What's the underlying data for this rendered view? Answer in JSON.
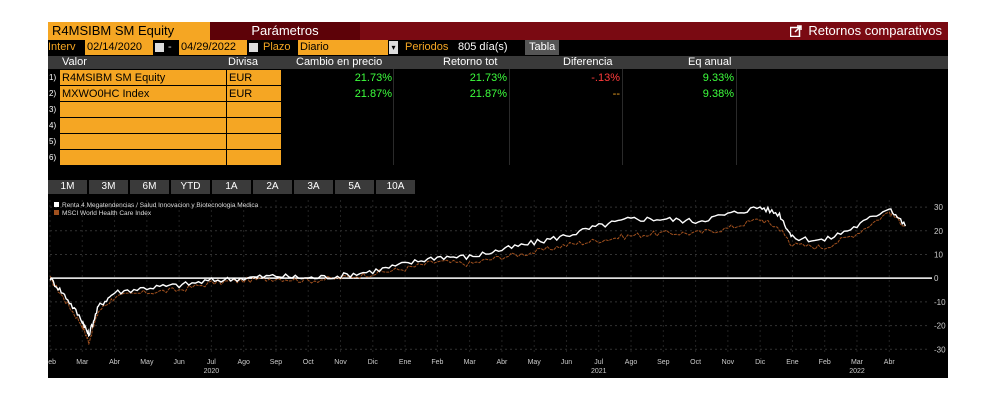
{
  "title": {
    "ticker": "R4MSIBM SM Equity",
    "params_tab": "Parámetros",
    "compare_label": "Retornos comparativos",
    "compare_icon": "external-link-icon"
  },
  "params": {
    "interval_label": "Interv",
    "start_date": "02/14/2020",
    "end_date": "04/29/2022",
    "plazo_label": "Plazo",
    "plazo_value": "Diario",
    "periodos_label": "Periodos",
    "periodos_value": "805 día(s)",
    "tabla_button": "Tabla"
  },
  "table": {
    "headers": [
      "Valor",
      "Divisa",
      "Cambio en precio",
      "Retorno tot",
      "Diferencia",
      "Eq anual"
    ],
    "rows": [
      {
        "num": "1)",
        "name": "R4MSIBM SM Equity",
        "currency": "EUR",
        "price_change": "21.73%",
        "total_return": "21.73%",
        "difference": "-.13%",
        "annual_eq": "9.33%"
      },
      {
        "num": "2)",
        "name": "MXWO0HC Index",
        "currency": "EUR",
        "price_change": "21.87%",
        "total_return": "21.87%",
        "difference": "--",
        "annual_eq": "9.38%"
      },
      {
        "num": "3)",
        "name": "",
        "currency": ""
      },
      {
        "num": "4)",
        "name": "",
        "currency": ""
      },
      {
        "num": "5)",
        "name": "",
        "currency": ""
      },
      {
        "num": "6)",
        "name": "",
        "currency": ""
      }
    ]
  },
  "periods": [
    "1M",
    "3M",
    "6M",
    "YTD",
    "1A",
    "2A",
    "3A",
    "5A",
    "10A"
  ],
  "colors": {
    "orange": "#f5a623",
    "title_red": "#7a0a12",
    "positive": "#3dff3d",
    "negative": "#ff3b3b"
  },
  "chart_data": {
    "type": "line",
    "legend": [
      {
        "name": "Renta 4 Megatendencias / Salud Innovacion y Biotecnologia Medica",
        "color": "#ffffff"
      },
      {
        "name": "MSCI World Health Care Index",
        "color": "#a0501e"
      }
    ],
    "x_tick_labels": [
      "Feb",
      "Mar",
      "Abr",
      "May",
      "Jun",
      "Jul",
      "Ago",
      "Sep",
      "Oct",
      "Nov",
      "Dic",
      "Ene",
      "Feb",
      "Mar",
      "Abr",
      "May",
      "Jun",
      "Jul",
      "Ago",
      "Sep",
      "Oct",
      "Nov",
      "Dic",
      "Ene",
      "Feb",
      "Mar",
      "Abr"
    ],
    "year_labels": [
      {
        "label": "2020",
        "month_index": 5
      },
      {
        "label": "2021",
        "month_index": 17
      },
      {
        "label": "2022",
        "month_index": 25
      }
    ],
    "y_ticks": [
      30,
      20,
      10,
      0,
      -10,
      -20,
      -30
    ],
    "ylim": [
      -32,
      33
    ],
    "grid": true,
    "legend_placement": "top-left",
    "months": [
      0,
      0.5,
      1,
      1.2,
      1.5,
      2,
      3,
      4,
      5,
      6,
      7,
      8,
      9,
      10,
      11,
      12,
      13,
      14,
      15,
      16,
      17,
      18,
      19,
      20,
      21,
      22,
      22.6,
      23,
      24,
      25,
      26,
      26.5
    ],
    "series": [
      {
        "name": "R4MSIBM SM Equity",
        "color": "#ffffff",
        "values": [
          0,
          -8,
          -18,
          -24,
          -12,
          -6,
          -4,
          -3,
          -1,
          0,
          1,
          0,
          1,
          3,
          6,
          9,
          9,
          12,
          15,
          18,
          22,
          25,
          25,
          24,
          27,
          30,
          27,
          17,
          16,
          22,
          30,
          22
        ]
      },
      {
        "name": "MXWO0HC Index",
        "color": "#a0501e",
        "values": [
          0,
          -10,
          -20,
          -27,
          -14,
          -8,
          -6,
          -5,
          -2,
          -1,
          0,
          -1,
          0,
          2,
          4,
          7,
          6,
          9,
          11,
          14,
          16,
          18,
          19,
          19,
          21,
          25,
          21,
          14,
          13,
          19,
          28,
          22
        ]
      }
    ]
  }
}
